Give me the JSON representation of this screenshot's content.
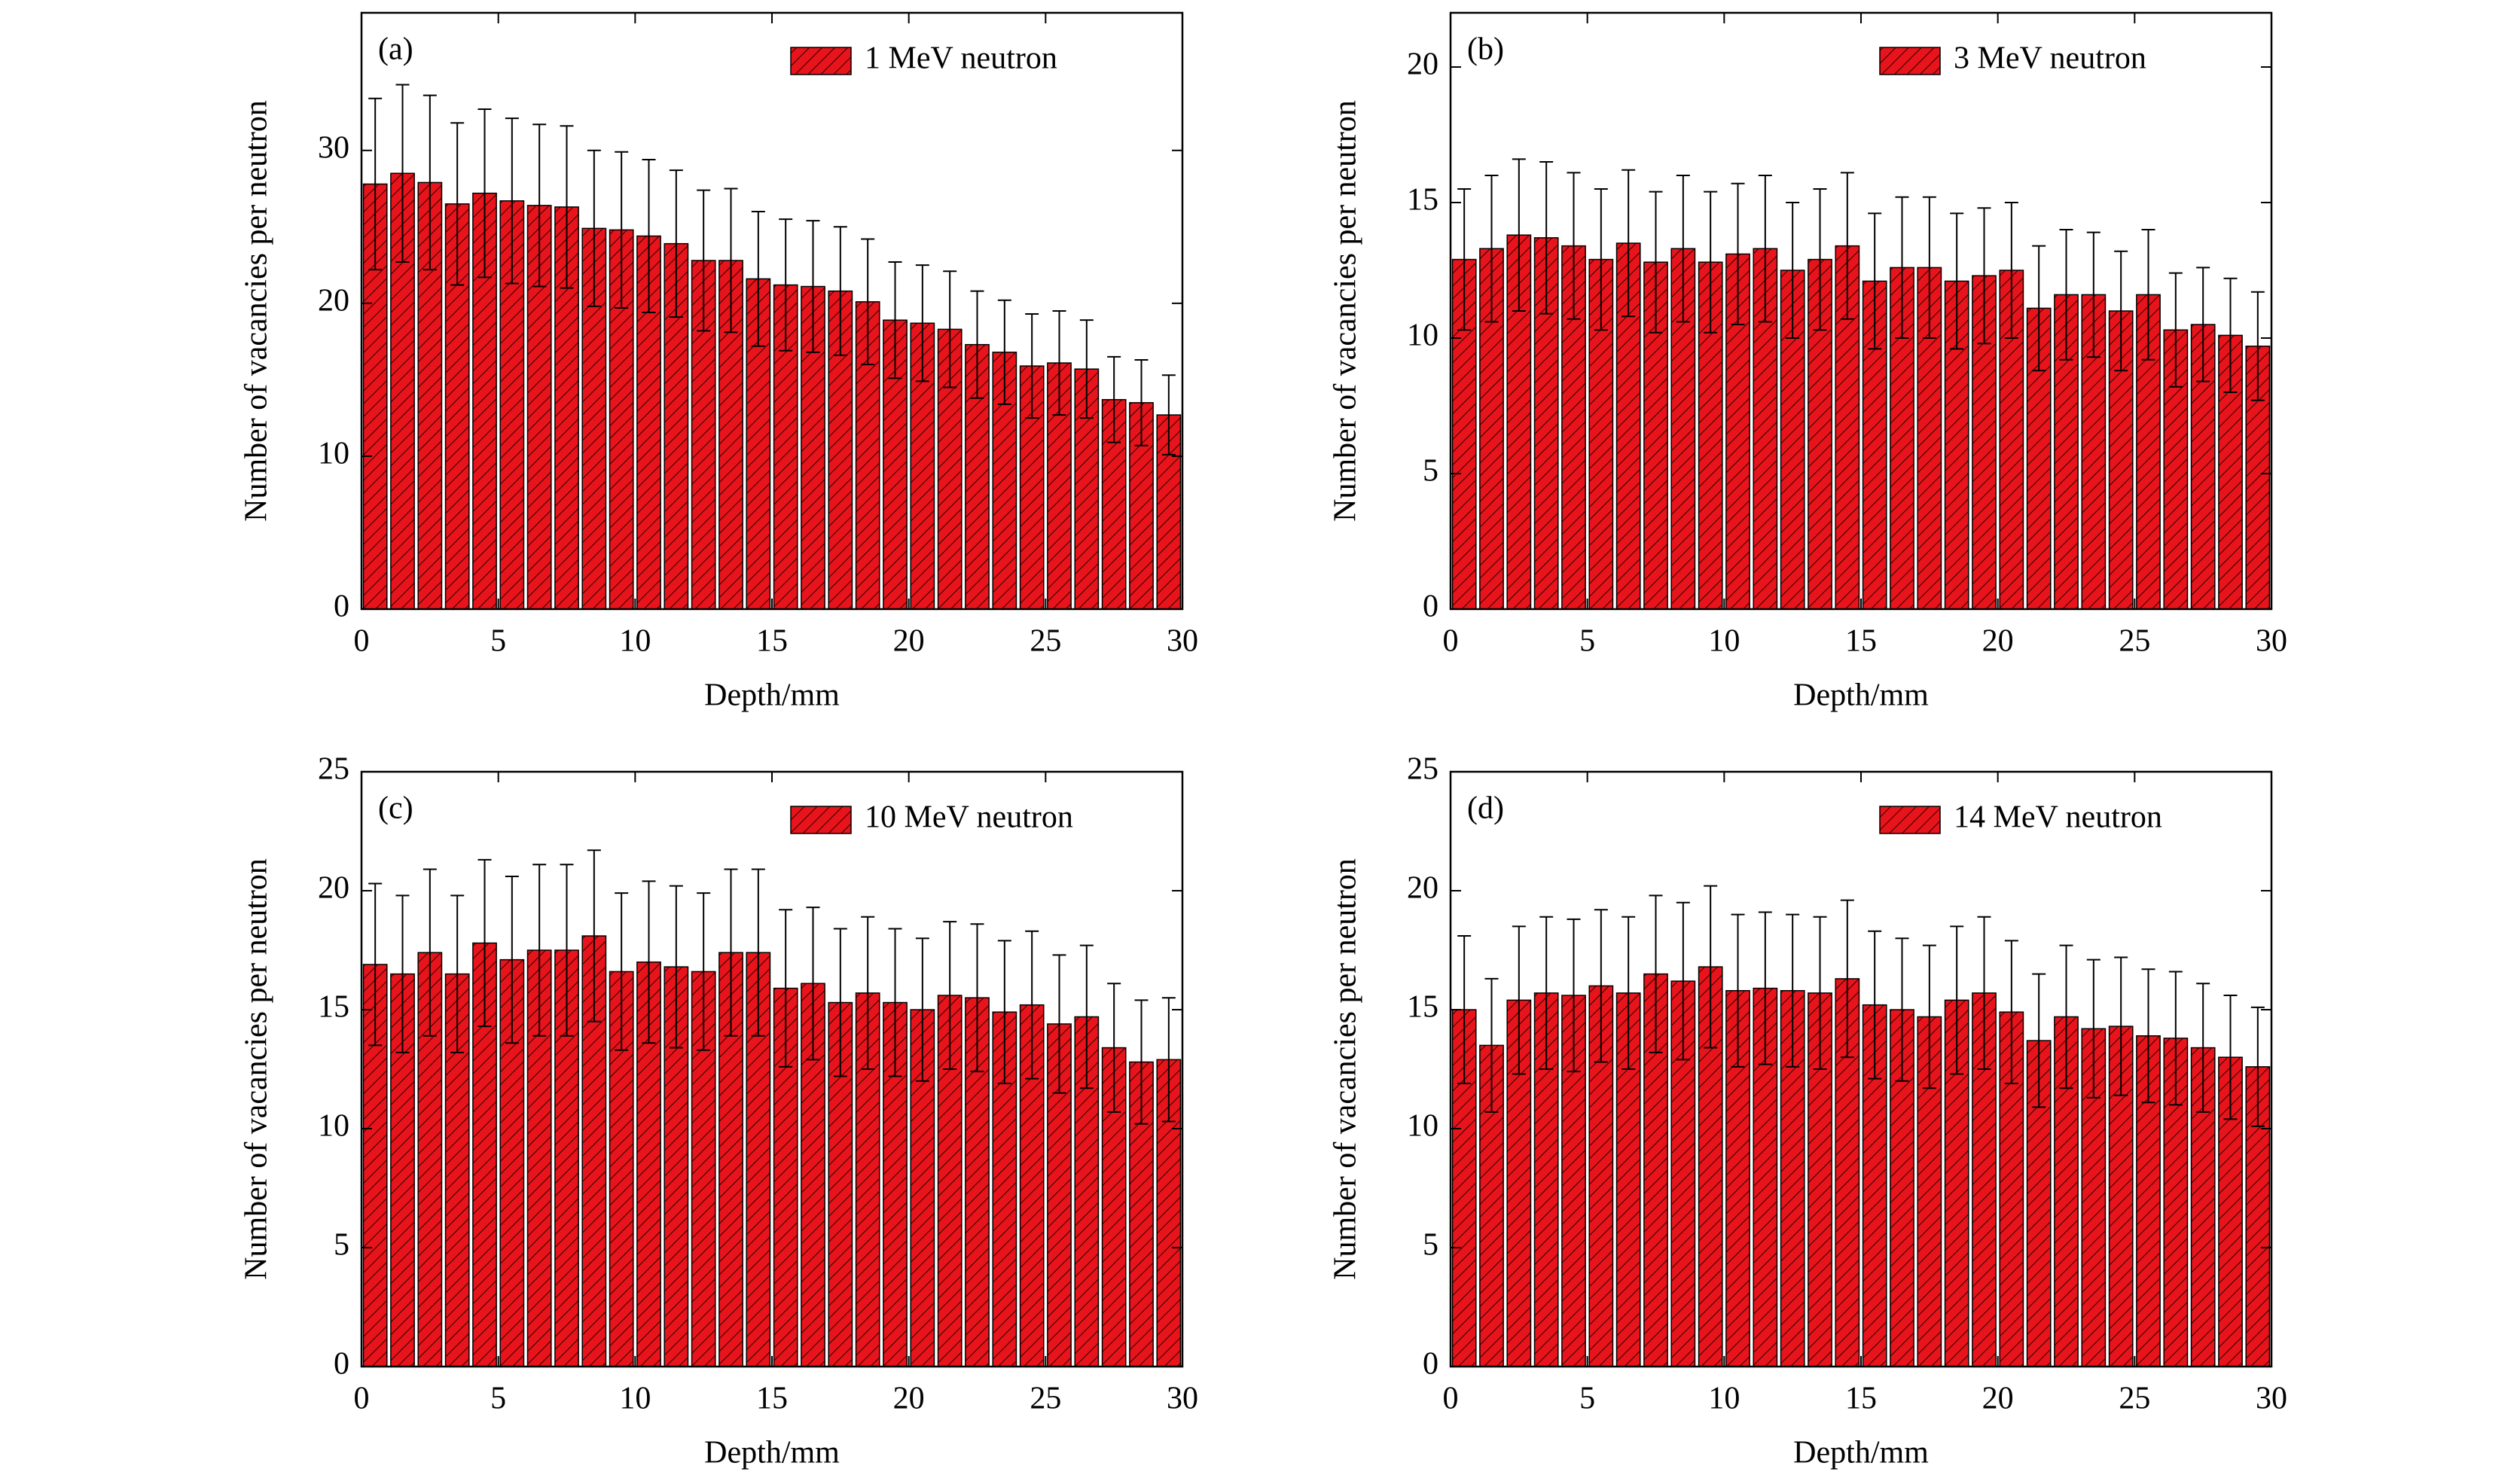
{
  "chart_data": [
    {
      "type": "bar",
      "annotation": "(a)",
      "x_label": "Depth/mm",
      "y_label": "Number of vacancies per neutron",
      "x": [
        0.5,
        1.5,
        2.5,
        3.5,
        4.5,
        5.5,
        6.5,
        7.5,
        8.5,
        9.5,
        10.5,
        11.5,
        12.5,
        13.5,
        14.5,
        15.5,
        16.5,
        17.5,
        18.5,
        19.5,
        20.5,
        21.5,
        22.5,
        23.5,
        24.5,
        25.5,
        26.5,
        27.5,
        28.5,
        29.5
      ],
      "series": [
        {
          "name": "1 MeV neutron",
          "color": "#e8141c",
          "values": [
            27.8,
            28.5,
            27.9,
            26.5,
            27.2,
            26.7,
            26.4,
            26.3,
            24.9,
            24.8,
            24.4,
            23.9,
            22.8,
            22.8,
            21.6,
            21.2,
            21.1,
            20.8,
            20.1,
            18.9,
            18.7,
            18.3,
            17.3,
            16.8,
            15.9,
            16.1,
            15.7,
            13.7,
            13.5,
            12.7
          ],
          "errors": [
            5.6,
            5.8,
            5.7,
            5.3,
            5.5,
            5.4,
            5.3,
            5.3,
            5.1,
            5.1,
            5.0,
            4.8,
            4.6,
            4.7,
            4.4,
            4.3,
            4.3,
            4.2,
            4.1,
            3.8,
            3.8,
            3.8,
            3.5,
            3.4,
            3.4,
            3.4,
            3.2,
            2.8,
            2.8,
            2.6
          ]
        }
      ],
      "xlim": [
        0,
        30
      ],
      "xticks": [
        0,
        5,
        10,
        15,
        20,
        25,
        30
      ],
      "ylim": [
        0,
        39
      ],
      "yticks": [
        0,
        10,
        20,
        30
      ],
      "legend": "upper right"
    },
    {
      "type": "bar",
      "annotation": "(b)",
      "x_label": "Depth/mm",
      "y_label": "Number of vacancies per neutron",
      "x": [
        0.5,
        1.5,
        2.5,
        3.5,
        4.5,
        5.5,
        6.5,
        7.5,
        8.5,
        9.5,
        10.5,
        11.5,
        12.5,
        13.5,
        14.5,
        15.5,
        16.5,
        17.5,
        18.5,
        19.5,
        20.5,
        21.5,
        22.5,
        23.5,
        24.5,
        25.5,
        26.5,
        27.5,
        28.5,
        29.5
      ],
      "series": [
        {
          "name": "3 MeV neutron",
          "color": "#e8141c",
          "values": [
            12.9,
            13.3,
            13.8,
            13.7,
            13.4,
            12.9,
            13.5,
            12.8,
            13.3,
            12.8,
            13.1,
            13.3,
            12.5,
            12.9,
            13.4,
            12.1,
            12.6,
            12.6,
            12.1,
            12.3,
            12.5,
            11.1,
            11.6,
            11.6,
            11.0,
            11.6,
            10.3,
            10.5,
            10.1,
            9.7
          ],
          "errors": [
            2.6,
            2.7,
            2.8,
            2.8,
            2.7,
            2.6,
            2.7,
            2.6,
            2.7,
            2.6,
            2.6,
            2.7,
            2.5,
            2.6,
            2.7,
            2.5,
            2.6,
            2.6,
            2.5,
            2.5,
            2.5,
            2.3,
            2.4,
            2.3,
            2.2,
            2.4,
            2.1,
            2.1,
            2.1,
            2.0
          ]
        }
      ],
      "xlim": [
        0,
        30
      ],
      "xticks": [
        0,
        5,
        10,
        15,
        20,
        25,
        30
      ],
      "ylim": [
        0,
        22
      ],
      "yticks": [
        0,
        5,
        10,
        15,
        20
      ],
      "legend": "upper right"
    },
    {
      "type": "bar",
      "annotation": "(c)",
      "x_label": "Depth/mm",
      "y_label": "Number of vacancies per neutron",
      "x": [
        0.5,
        1.5,
        2.5,
        3.5,
        4.5,
        5.5,
        6.5,
        7.5,
        8.5,
        9.5,
        10.5,
        11.5,
        12.5,
        13.5,
        14.5,
        15.5,
        16.5,
        17.5,
        18.5,
        19.5,
        20.5,
        21.5,
        22.5,
        23.5,
        24.5,
        25.5,
        26.5,
        27.5,
        28.5,
        29.5
      ],
      "series": [
        {
          "name": "10 MeV neutron",
          "color": "#e8141c",
          "values": [
            16.9,
            16.5,
            17.4,
            16.5,
            17.8,
            17.1,
            17.5,
            17.5,
            18.1,
            16.6,
            17.0,
            16.8,
            16.6,
            17.4,
            17.4,
            15.9,
            16.1,
            15.3,
            15.7,
            15.3,
            15.0,
            15.6,
            15.5,
            14.9,
            15.2,
            14.4,
            14.7,
            13.4,
            12.8,
            12.9
          ],
          "errors": [
            3.4,
            3.3,
            3.5,
            3.3,
            3.5,
            3.5,
            3.6,
            3.6,
            3.6,
            3.3,
            3.4,
            3.4,
            3.3,
            3.5,
            3.5,
            3.3,
            3.2,
            3.1,
            3.2,
            3.1,
            3.0,
            3.1,
            3.1,
            3.0,
            3.1,
            2.9,
            3.0,
            2.7,
            2.6,
            2.6
          ]
        }
      ],
      "xlim": [
        0,
        30
      ],
      "xticks": [
        0,
        5,
        10,
        15,
        20,
        25,
        30
      ],
      "ylim": [
        0,
        25
      ],
      "yticks": [
        0,
        5,
        10,
        15,
        20,
        25
      ],
      "legend": "upper right"
    },
    {
      "type": "bar",
      "annotation": "(d)",
      "x_label": "Depth/mm",
      "y_label": "Number of vacancies per neutron",
      "x": [
        0.5,
        1.5,
        2.5,
        3.5,
        4.5,
        5.5,
        6.5,
        7.5,
        8.5,
        9.5,
        10.5,
        11.5,
        12.5,
        13.5,
        14.5,
        15.5,
        16.5,
        17.5,
        18.5,
        19.5,
        20.5,
        21.5,
        22.5,
        23.5,
        24.5,
        25.5,
        26.5,
        27.5,
        28.5,
        29.5
      ],
      "series": [
        {
          "name": "14 MeV neutron",
          "color": "#e8141c",
          "values": [
            15.0,
            13.5,
            15.4,
            15.7,
            15.6,
            16.0,
            15.7,
            16.5,
            16.2,
            16.8,
            15.8,
            15.9,
            15.8,
            15.7,
            16.3,
            15.2,
            15.0,
            14.7,
            15.4,
            15.7,
            14.9,
            13.7,
            14.7,
            14.2,
            14.3,
            13.9,
            13.8,
            13.4,
            13.0,
            12.6
          ],
          "errors": [
            3.1,
            2.8,
            3.1,
            3.2,
            3.2,
            3.2,
            3.2,
            3.3,
            3.3,
            3.4,
            3.2,
            3.2,
            3.2,
            3.2,
            3.3,
            3.1,
            3.0,
            3.0,
            3.1,
            3.2,
            3.0,
            2.8,
            3.0,
            2.9,
            2.9,
            2.8,
            2.8,
            2.7,
            2.6,
            2.5
          ]
        }
      ],
      "xlim": [
        0,
        30
      ],
      "xticks": [
        0,
        5,
        10,
        15,
        20,
        25,
        30
      ],
      "ylim": [
        0,
        25
      ],
      "yticks": [
        0,
        5,
        10,
        15,
        20,
        25
      ],
      "legend": "upper right"
    }
  ]
}
